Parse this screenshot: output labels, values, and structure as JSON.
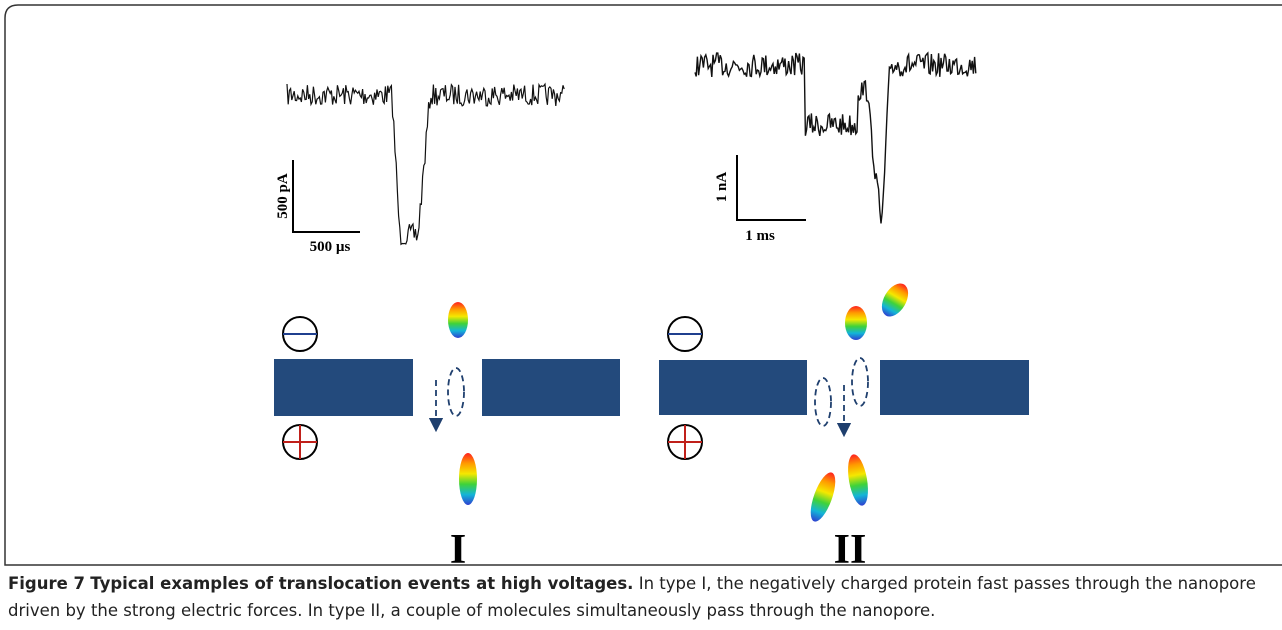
{
  "figure": {
    "scale_bars": [
      {
        "current": "500 pA",
        "time": "500 µs"
      },
      {
        "current": "1 nA",
        "time": "1 ms"
      }
    ],
    "panels": [
      "I",
      "II"
    ]
  },
  "caption": {
    "label": "Figure 7",
    "title": "Typical examples of translocation events at high voltages.",
    "text": "In type I, the negatively charged protein fast passes through the nanopore driven by the strong electric forces. In type II, a couple of molecules simultaneously pass through the nanopore."
  }
}
